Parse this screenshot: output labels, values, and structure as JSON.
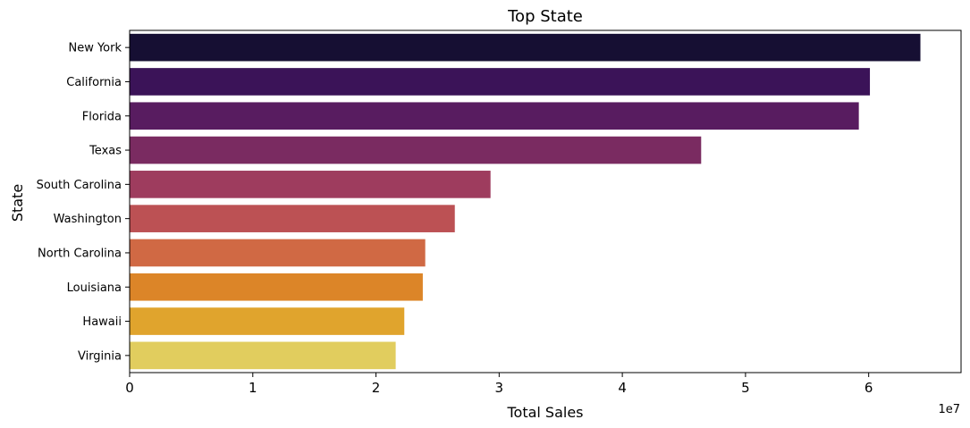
{
  "chart_data": {
    "type": "bar",
    "orientation": "horizontal",
    "title": "Top State",
    "xlabel": "Total Sales",
    "ylabel": "State",
    "x_offset_label": "1e7",
    "x_scale": 10000000,
    "xlim": [
      0,
      6.75
    ],
    "xticks": [
      "0",
      "1",
      "2",
      "3",
      "4",
      "5",
      "6"
    ],
    "grid": false,
    "categories": [
      "New York",
      "California",
      "Florida",
      "Texas",
      "South Carolina",
      "Washington",
      "North Carolina",
      "Louisiana",
      "Hawaii",
      "Virginia"
    ],
    "values": [
      64.2,
      60.1,
      59.2,
      46.4,
      29.3,
      26.4,
      24.0,
      23.8,
      22.3,
      21.6
    ],
    "value_unit_note": "values in millions",
    "colors": [
      "#160f33",
      "#3b1358",
      "#581c60",
      "#7a2b61",
      "#9e3c5e",
      "#bc5154",
      "#d06944",
      "#dc8528",
      "#e0a42d",
      "#e1cd5e"
    ]
  }
}
